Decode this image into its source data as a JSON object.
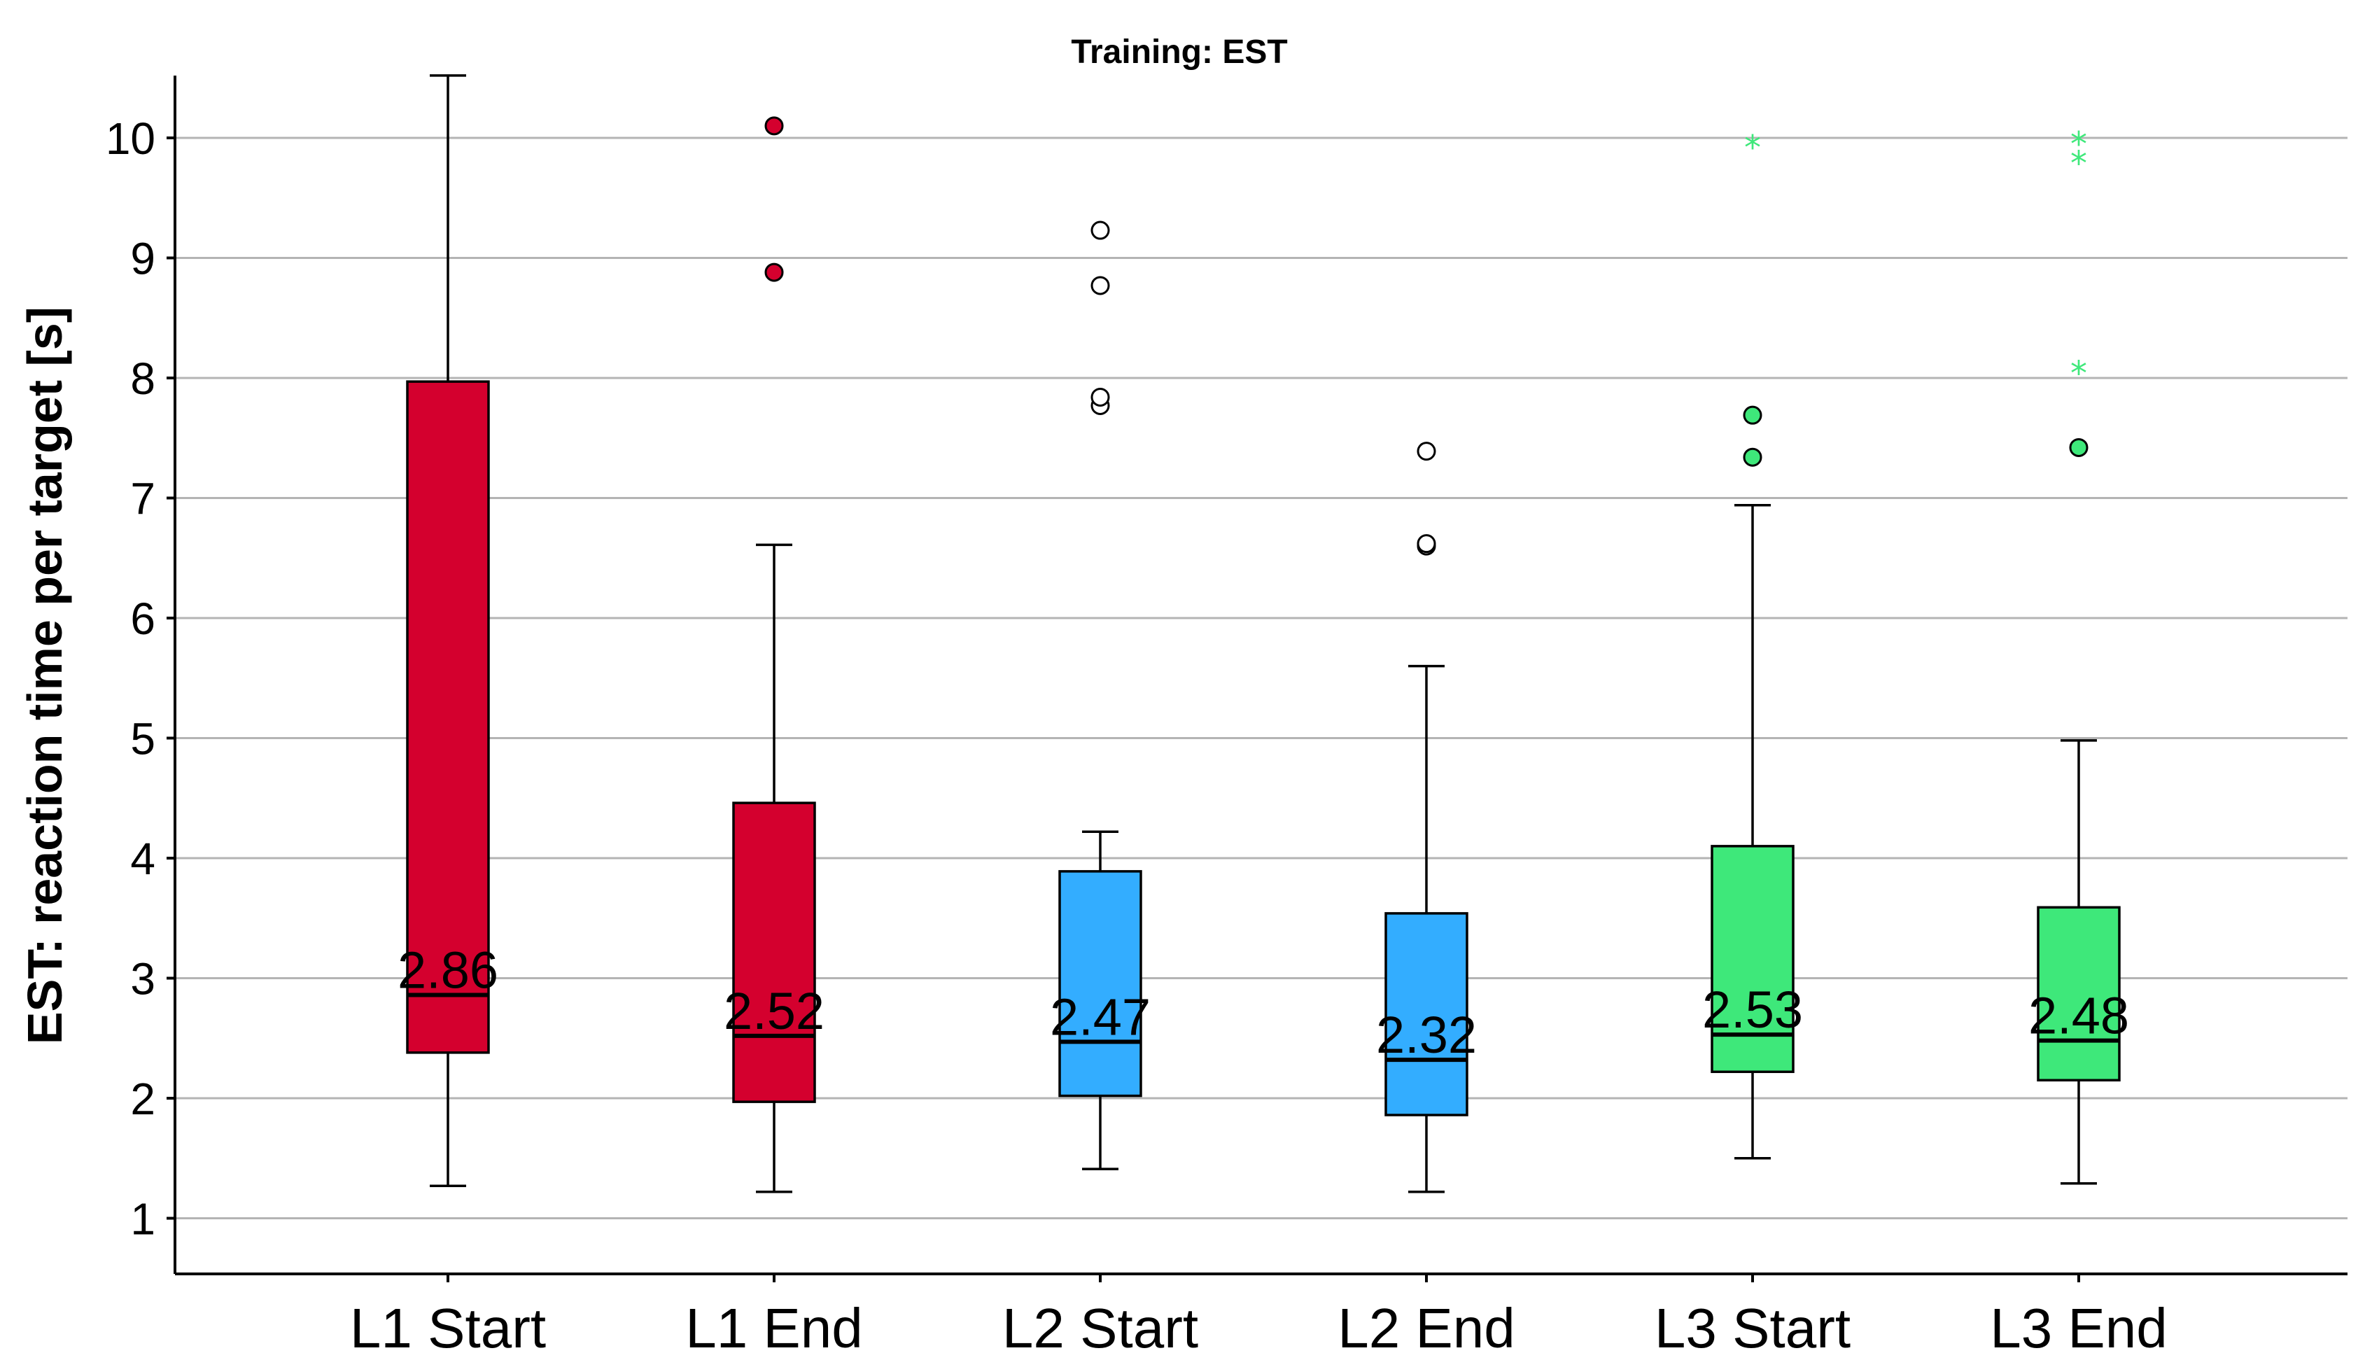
{
  "chart_data": {
    "type": "boxplot",
    "title": "Training: EST",
    "xlabel": "",
    "ylabel": "EST: reaction time per target [s]",
    "ylim": [
      0.5,
      10.5
    ],
    "yticks": [
      1,
      2,
      3,
      4,
      5,
      6,
      7,
      8,
      9,
      10
    ],
    "grid": true,
    "colors": {
      "red": "#d4002e",
      "blue": "#33adff",
      "green": "#3ee87a",
      "grid": "#b4b4b4"
    },
    "categories": [
      "L1 Start",
      "L1 End",
      "L2 Start",
      "L2 End",
      "L3 Start",
      "L3 End"
    ],
    "boxes": [
      {
        "label": "L1 Start",
        "color": "#d4002e",
        "whisker_low": 1.27,
        "q1": 2.38,
        "median": 2.86,
        "q3": 7.97,
        "whisker_high": 10.52,
        "median_label": "2.86",
        "outliers": [],
        "outlier_style": "none",
        "extremes": []
      },
      {
        "label": "L1 End",
        "color": "#d4002e",
        "whisker_low": 1.22,
        "q1": 1.97,
        "median": 2.52,
        "q3": 4.46,
        "whisker_high": 6.61,
        "median_label": "2.52",
        "outliers": [
          8.88,
          10.1
        ],
        "outlier_style": "filled",
        "extremes": []
      },
      {
        "label": "L2 Start",
        "color": "#33adff",
        "whisker_low": 1.41,
        "q1": 2.02,
        "median": 2.47,
        "q3": 3.89,
        "whisker_high": 4.22,
        "median_label": "2.47",
        "outliers": [
          7.77,
          7.84,
          8.77,
          9.23
        ],
        "outlier_style": "open",
        "extremes": []
      },
      {
        "label": "L2 End",
        "color": "#33adff",
        "whisker_low": 1.22,
        "q1": 1.86,
        "median": 2.32,
        "q3": 3.54,
        "whisker_high": 5.6,
        "median_label": "2.32",
        "outliers": [
          6.6,
          6.62,
          7.39
        ],
        "outlier_style": "open",
        "extremes": []
      },
      {
        "label": "L3 Start",
        "color": "#3ee87a",
        "whisker_low": 1.5,
        "q1": 2.22,
        "median": 2.53,
        "q3": 4.1,
        "whisker_high": 6.94,
        "median_label": "2.53",
        "outliers": [
          7.34,
          7.69
        ],
        "outlier_style": "filled",
        "extremes": [
          9.95
        ]
      },
      {
        "label": "L3 End",
        "color": "#3ee87a",
        "whisker_low": 1.29,
        "q1": 2.15,
        "median": 2.48,
        "q3": 3.59,
        "whisker_high": 4.98,
        "median_label": "2.48",
        "outliers": [
          7.42
        ],
        "outlier_style": "filled",
        "extremes": [
          8.07,
          9.82,
          9.98
        ]
      }
    ]
  }
}
